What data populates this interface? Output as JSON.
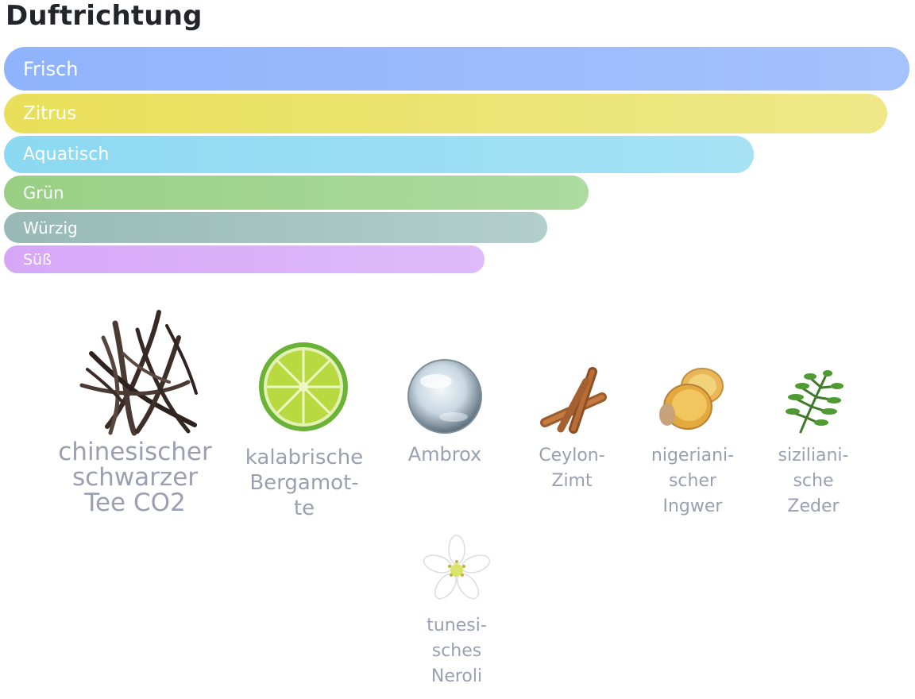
{
  "section": {
    "title": "Duftrichtung"
  },
  "scent_bars": [
    {
      "label": "Frisch",
      "value": 100,
      "colors": [
        "#8fb3fc",
        "#a6c2fc"
      ]
    },
    {
      "label": "Zitrus",
      "value": 97.5,
      "colors": [
        "#e9df59",
        "#eee889"
      ]
    },
    {
      "label": "Aquatisch",
      "value": 82.8,
      "colors": [
        "#8cd9f2",
        "#a6e2f4"
      ]
    },
    {
      "label": "Grün",
      "value": 64.6,
      "colors": [
        "#99cf84",
        "#addba0"
      ]
    },
    {
      "label": "Würzig",
      "value": 60.0,
      "colors": [
        "#98b9b6",
        "#b2cfcc"
      ]
    },
    {
      "label": "Süß",
      "value": 53.1,
      "colors": [
        "#d6a7f7",
        "#dfbbfb"
      ]
    }
  ],
  "ingredients": [
    {
      "name": "chinesischer schwarzer Tee CO2",
      "label_lines": [
        "chinesischer",
        "schwarzer",
        "Tee CO2"
      ],
      "icon": "black-tea-leaves-icon"
    },
    {
      "name": "kalabrische Bergamotte",
      "label_lines": [
        "kalabrische",
        "Bergamot-",
        "te"
      ],
      "icon": "bergamot-icon"
    },
    {
      "name": "Ambrox",
      "label_lines": [
        "Ambrox"
      ],
      "icon": "ambrox-drop-icon"
    },
    {
      "name": "Ceylon-Zimt",
      "label_lines": [
        "Ceylon-",
        "Zimt"
      ],
      "icon": "cinnamon-icon"
    },
    {
      "name": "nigerianischer Ingwer",
      "label_lines": [
        "nigeriani-",
        "scher",
        "Ingwer"
      ],
      "icon": "ginger-icon"
    },
    {
      "name": "sizilianische Zeder",
      "label_lines": [
        "siziliani-",
        "sche",
        "Zeder"
      ],
      "icon": "cedar-branch-icon"
    },
    {
      "name": "tunesisches Neroli",
      "label_lines": [
        "tunesi-",
        "sches",
        "Neroli"
      ],
      "icon": "neroli-flower-icon"
    }
  ]
}
